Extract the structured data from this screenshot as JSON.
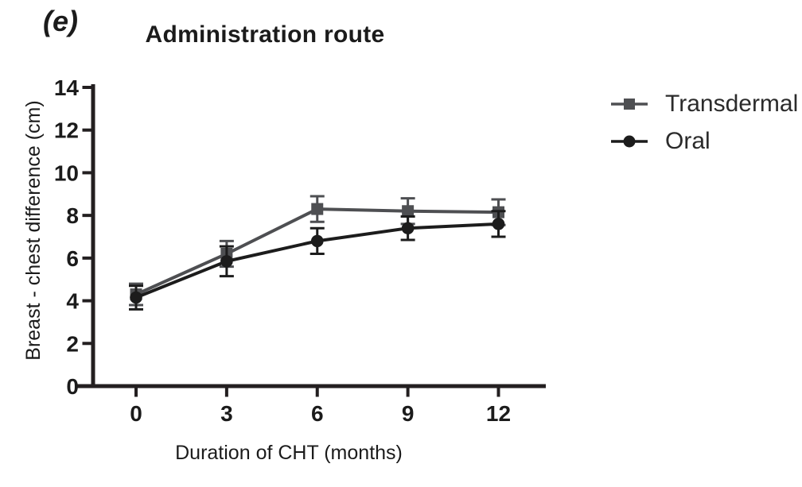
{
  "panel_label": "(e)",
  "chart_data": {
    "type": "line",
    "title": "Administration route",
    "xlabel": "Duration of CHT (months)",
    "ylabel": "Breast - chest difference (cm)",
    "x": [
      0,
      3,
      6,
      9,
      12
    ],
    "xtick_labels": [
      "0",
      "3",
      "6",
      "9",
      "12"
    ],
    "ytick_values": [
      0,
      2,
      4,
      6,
      8,
      10,
      12,
      14
    ],
    "ylim": [
      0,
      14
    ],
    "xlim": [
      -2,
      13.5
    ],
    "grid": false,
    "legend_position": "right",
    "series": [
      {
        "name": "Transdermal",
        "marker": "square",
        "color": "#4e4f52",
        "values": [
          4.3,
          6.2,
          8.3,
          8.2,
          8.15
        ],
        "errors": [
          0.5,
          0.6,
          0.6,
          0.6,
          0.6
        ]
      },
      {
        "name": "Oral",
        "marker": "circle",
        "color": "#1c1c1c",
        "values": [
          4.15,
          5.85,
          6.8,
          7.4,
          7.6
        ],
        "errors": [
          0.55,
          0.7,
          0.6,
          0.55,
          0.6
        ]
      }
    ]
  },
  "colors": {
    "axis": "#231f20",
    "text": "#1b1b1b"
  }
}
